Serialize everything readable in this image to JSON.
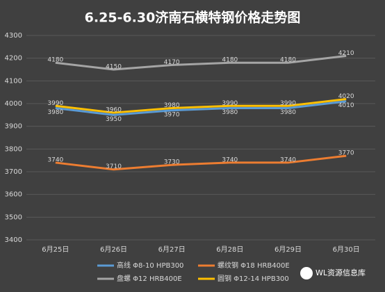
{
  "chart_data": {
    "type": "line",
    "title": "6.25-6.30济南石横特钢价格走势图",
    "categories": [
      "6月25日",
      "6月26日",
      "6月27日",
      "6月28日",
      "6月29日",
      "6月30日"
    ],
    "series": [
      {
        "name": "高线 Φ8-10 HPB300",
        "color": "#5b9bd5",
        "values": [
          3980,
          3950,
          3970,
          3980,
          3980,
          4010
        ]
      },
      {
        "name": "螺纹钢 Φ18 HRB400E",
        "color": "#ed7d31",
        "values": [
          3740,
          3710,
          3730,
          3740,
          3740,
          3770
        ]
      },
      {
        "name": "盘螺 Φ12 HRB400E",
        "color": "#a5a5a5",
        "values": [
          4180,
          4150,
          4170,
          4180,
          4180,
          4210
        ]
      },
      {
        "name": "圆钢 Φ12-14 HPB300",
        "color": "#ffc000",
        "values": [
          3990,
          3960,
          3980,
          3990,
          3990,
          4020
        ]
      }
    ],
    "ylim": [
      3400,
      4300
    ],
    "yticks": [
      3400,
      3500,
      3600,
      3700,
      3800,
      3900,
      4000,
      4100,
      4200,
      4300
    ],
    "grid": true,
    "legend": "bottom",
    "watermark": "WL资源信息库"
  }
}
